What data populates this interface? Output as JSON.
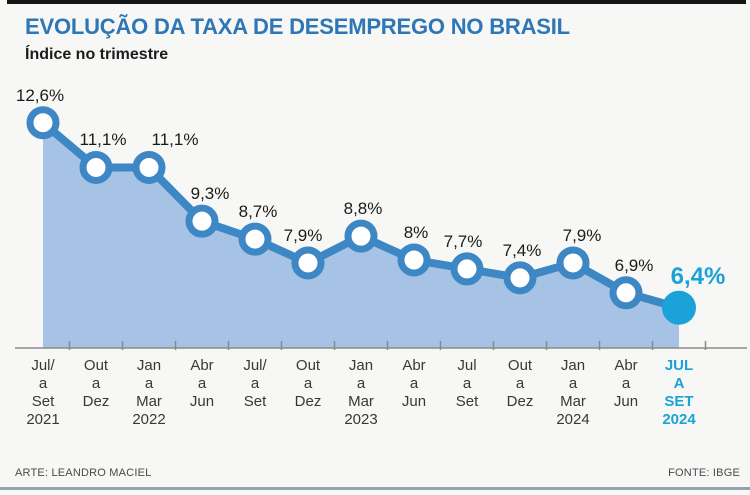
{
  "header": {
    "title": "EVOLUÇÃO DA TAXA DE DESEMPREGO NO BRASIL",
    "subtitle": "Índice no trimestre"
  },
  "footer": {
    "credit": "ARTE: LEANDRO MACIEL",
    "source": "FONTE: IBGE"
  },
  "colors": {
    "title": "#2e76b6",
    "line": "#3d87c5",
    "area_fill": "#a6c2e5",
    "highlight": "#1ba2d8",
    "axis": "#8a8a8a",
    "label": "#1b1b1b",
    "top_rule": "#151515",
    "bottom_rule": "#97a3ab"
  },
  "chart_data": {
    "type": "area",
    "title": "EVOLUÇÃO DA TAXA DE DESEMPREGO NO BRASIL",
    "subtitle": "Índice no trimestre",
    "unit": "%",
    "categories": [
      [
        "Jul/",
        "a",
        "Set",
        "2021"
      ],
      [
        "Out",
        "a",
        "Dez"
      ],
      [
        "Jan",
        "a",
        "Mar",
        "2022"
      ],
      [
        "Abr",
        "a",
        "Jun"
      ],
      [
        "Jul/",
        "a",
        "Set"
      ],
      [
        "Out",
        "a",
        "Dez"
      ],
      [
        "Jan",
        "a",
        "Mar",
        "2023"
      ],
      [
        "Abr",
        "a",
        "Jun"
      ],
      [
        "Jul",
        "a",
        "Set"
      ],
      [
        "Out",
        "a",
        "Dez"
      ],
      [
        "Jan",
        "a",
        "Mar",
        "2024"
      ],
      [
        "Abr",
        "a",
        "Jun"
      ],
      [
        "JUL",
        "A",
        "SET",
        "2024"
      ]
    ],
    "values": [
      12.6,
      11.1,
      11.1,
      9.3,
      8.7,
      7.9,
      8.8,
      8.0,
      7.7,
      7.4,
      7.9,
      6.9,
      6.4
    ],
    "value_labels": [
      "12,6%",
      "11,1%",
      "11,1%",
      "9,3%",
      "8,7%",
      "7,9%",
      "8,8%",
      "8%",
      "7,7%",
      "7,4%",
      "7,9%",
      "6,9%",
      "6,4%"
    ],
    "highlight_index": 12,
    "ylim": [
      5,
      13
    ],
    "grid": false,
    "legend": "none",
    "label_offsets_x": [
      -3,
      7,
      26,
      8,
      3,
      -5,
      2,
      2,
      -4,
      2,
      9,
      8,
      19
    ]
  }
}
